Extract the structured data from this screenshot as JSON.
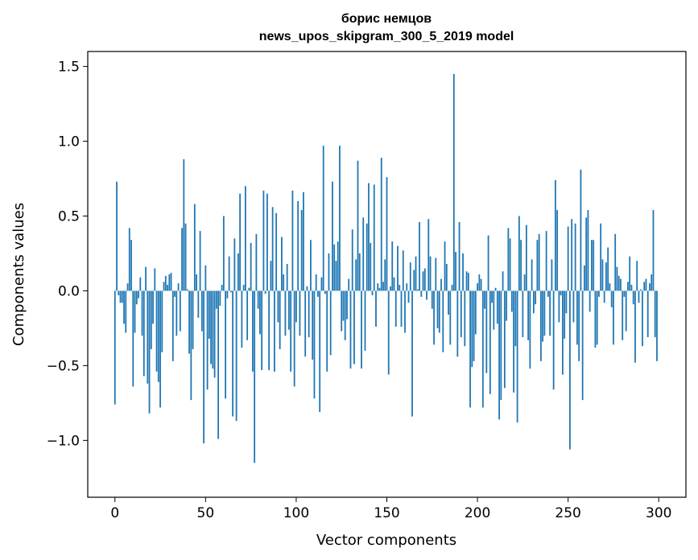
{
  "chart_data": {
    "type": "bar",
    "title": "борис немцов",
    "subtitle": "news_upos_skipgram_300_5_2019 model",
    "xlabel": "Vector components",
    "ylabel": "Components values",
    "xlim": [
      -15,
      315
    ],
    "ylim": [
      -1.38,
      1.6
    ],
    "x_ticks": [
      0,
      50,
      100,
      150,
      200,
      250,
      300
    ],
    "x_tick_labels": [
      "0",
      "50",
      "100",
      "150",
      "200",
      "250",
      "300"
    ],
    "y_ticks": [
      -1.0,
      -0.5,
      0.0,
      0.5,
      1.0,
      1.5
    ],
    "y_tick_labels": [
      "−1.0",
      "−0.5",
      "0.0",
      "0.5",
      "1.0",
      "1.5"
    ],
    "bar_color": "#1f77b4",
    "grid": false,
    "values": [
      -0.76,
      0.73,
      -0.03,
      -0.08,
      -0.08,
      -0.22,
      -0.28,
      0.05,
      0.42,
      0.34,
      -0.64,
      -0.28,
      -0.09,
      -0.05,
      0.09,
      -0.3,
      -0.57,
      0.16,
      -0.62,
      -0.82,
      -0.39,
      -0.22,
      0.15,
      -0.54,
      -0.61,
      -0.78,
      -0.41,
      0.06,
      0.1,
      0.04,
      0.11,
      0.12,
      -0.47,
      -0.04,
      -0.3,
      0.05,
      -0.27,
      0.42,
      0.88,
      0.45,
      0.01,
      -0.42,
      -0.73,
      -0.39,
      0.58,
      0.11,
      -0.18,
      0.4,
      -0.27,
      -1.02,
      0.17,
      -0.66,
      -0.32,
      -0.49,
      -0.52,
      -0.58,
      -0.12,
      -0.99,
      -0.1,
      0.04,
      0.5,
      -0.72,
      -0.05,
      0.23,
      -0.01,
      -0.84,
      0.35,
      -0.87,
      0.25,
      0.65,
      -0.38,
      0.04,
      0.7,
      -0.33,
      0.02,
      0.32,
      -0.54,
      -1.15,
      0.38,
      -0.12,
      -0.29,
      -0.53,
      0.67,
      -0.02,
      0.65,
      -0.53,
      0.2,
      0.56,
      -0.54,
      0.52,
      -0.21,
      -0.39,
      0.36,
      0.11,
      -0.3,
      0.18,
      -0.26,
      -0.54,
      0.67,
      -0.64,
      -0.21,
      0.6,
      -0.3,
      0.54,
      0.66,
      -0.44,
      0.03,
      -0.31,
      0.34,
      -0.46,
      -0.72,
      0.11,
      -0.04,
      -0.81,
      0.09,
      0.97,
      -0.02,
      -0.54,
      0.25,
      -0.43,
      0.73,
      0.31,
      0.2,
      0.33,
      0.97,
      -0.27,
      -0.2,
      -0.33,
      -0.19,
      0.08,
      -0.52,
      0.41,
      -0.49,
      0.21,
      0.87,
      0.25,
      -0.52,
      0.49,
      -0.4,
      0.45,
      0.72,
      0.32,
      -0.03,
      0.71,
      -0.24,
      0.05,
      0.02,
      0.89,
      0.06,
      0.21,
      0.76,
      -0.56,
      0.03,
      0.33,
      0.09,
      -0.24,
      0.3,
      0.04,
      -0.24,
      0.27,
      -0.28,
      0.05,
      -0.08,
      0.19,
      -0.84,
      0.14,
      0.23,
      0.01,
      0.46,
      -0.04,
      0.13,
      0.15,
      -0.06,
      0.48,
      0.23,
      -0.12,
      -0.36,
      0.22,
      -0.25,
      -0.28,
      0.08,
      -0.41,
      0.33,
      0.18,
      -0.16,
      -0.36,
      0.04,
      1.45,
      0.26,
      -0.44,
      0.46,
      -0.31,
      0.25,
      -0.37,
      0.13,
      0.12,
      -0.78,
      -0.51,
      -0.47,
      -0.29,
      0.05,
      0.11,
      0.08,
      -0.78,
      -0.12,
      -0.55,
      0.37,
      -0.69,
      -0.08,
      -0.26,
      0.02,
      -0.22,
      -0.86,
      -0.73,
      0.13,
      -0.65,
      -0.2,
      0.42,
      0.35,
      -0.14,
      -0.68,
      -0.37,
      -0.88,
      0.5,
      0.34,
      -0.31,
      0.11,
      0.44,
      -0.33,
      -0.52,
      0.21,
      -0.15,
      -0.09,
      0.34,
      0.38,
      -0.47,
      -0.34,
      -0.3,
      0.4,
      -0.04,
      -0.3,
      0.21,
      -0.66,
      0.74,
      0.54,
      -0.21,
      -0.03,
      -0.56,
      -0.32,
      -0.15,
      0.43,
      -1.06,
      0.48,
      -0.21,
      0.45,
      -0.36,
      -0.47,
      0.81,
      -0.73,
      0.17,
      0.49,
      0.54,
      -0.14,
      0.34,
      0.34,
      -0.38,
      -0.36,
      -0.04,
      0.45,
      0.21,
      -0.08,
      0.19,
      0.29,
      0.05,
      -0.11,
      -0.36,
      0.38,
      0.16,
      0.1,
      0.08,
      -0.33,
      -0.04,
      -0.27,
      0.06,
      0.23,
      0.04,
      -0.09,
      -0.48,
      0.2,
      -0.08,
      0.01,
      -0.37,
      0.06,
      0.08,
      -0.31,
      0.05,
      0.11,
      0.54,
      -0.31,
      -0.47
    ]
  }
}
